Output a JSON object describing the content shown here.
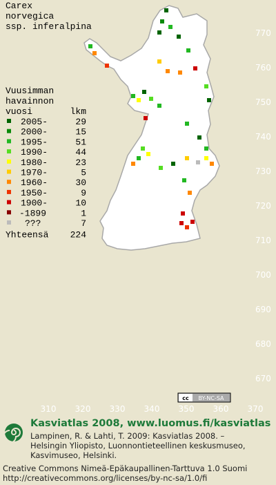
{
  "title": [
    "Carex",
    "norvegica",
    "ssp. inferalpina"
  ],
  "legend": {
    "header": [
      "Vuusimman",
      "havainnon",
      "vuosi"
    ],
    "count_header": "lkm",
    "rows": [
      {
        "label": "2005-",
        "count": 29,
        "color": "#006400"
      },
      {
        "label": "2000-",
        "count": 15,
        "color": "#0a8a0a"
      },
      {
        "label": "1995-",
        "count": 51,
        "color": "#22b822"
      },
      {
        "label": "1990-",
        "count": 44,
        "color": "#55dd22"
      },
      {
        "label": "1980-",
        "count": 23,
        "color": "#ffff00"
      },
      {
        "label": "1970-",
        "count": 5,
        "color": "#ffcc00"
      },
      {
        "label": "1960-",
        "count": 30,
        "color": "#ff8800"
      },
      {
        "label": "1950-",
        "count": 9,
        "color": "#ee3300"
      },
      {
        "label": "1900-",
        "count": 10,
        "color": "#cc0000"
      },
      {
        "label": "-1899",
        "count": 1,
        "color": "#880000"
      },
      {
        "label": "???",
        "count": 7,
        "color": "#bbbbbb"
      }
    ],
    "total_label": "Yhteensä",
    "total": 224
  },
  "map": {
    "yticks": [
      770,
      760,
      750,
      740,
      730,
      720,
      710,
      700,
      690,
      680,
      670
    ],
    "xticks": [
      310,
      320,
      330,
      340,
      350,
      360,
      370
    ]
  },
  "license_badge": {
    "symbol": "cc",
    "text": "BY-NC-SA"
  },
  "footer": {
    "title": "Kasviatlas 2008, www.luomus.fi/kasviatlas",
    "citation": [
      "Lampinen, R. & Lahti, T. 2009: Kasviatlas 2008. –",
      "Helsingin Yliopisto, Luonnontieteellinen keskusmuseo,",
      "Kasvimuseo, Helsinki."
    ],
    "license": [
      "Creative Commons Nimeä-Epäkaupallinen-Tarttuva 1.0 Suomi",
      "http://creativecommons.org/licenses/by-nc-sa/1.0/fi"
    ]
  }
}
